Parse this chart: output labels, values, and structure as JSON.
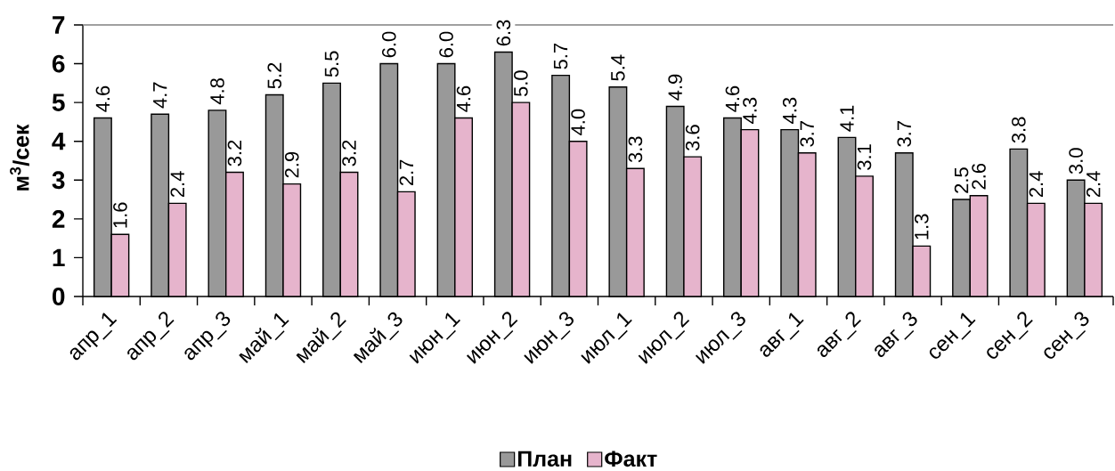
{
  "chart_data": {
    "type": "bar",
    "ylabel": "м$^{3}$/сек",
    "categories": [
      "апр_1",
      "апр_2",
      "апр_3",
      "май_1",
      "май_2",
      "май_3",
      "июн_1",
      "июн_2",
      "июн_3",
      "июл_1",
      "июл_2",
      "июл_3",
      "авг_1",
      "авг_2",
      "авг_3",
      "сен_1",
      "сен_2",
      "сен_3"
    ],
    "series": [
      {
        "name": "План",
        "color": "#999999",
        "values": [
          4.6,
          4.7,
          4.8,
          5.2,
          5.5,
          6.0,
          6.0,
          6.3,
          5.7,
          5.4,
          4.9,
          4.6,
          4.3,
          4.1,
          3.7,
          2.5,
          3.8,
          3.0
        ],
        "value_labels": [
          "4.6",
          "4.7",
          "4.8",
          "5.2",
          "5.5",
          "6.0",
          "6.0",
          "6.3",
          "5.7",
          "5.4",
          "4.9",
          "4.6",
          "4.3",
          "4.1",
          "3.7",
          "2.5",
          "3.8",
          "3.0"
        ]
      },
      {
        "name": "Факт",
        "color": "#e6b4cc",
        "values": [
          1.6,
          2.4,
          3.2,
          2.9,
          3.2,
          2.7,
          4.6,
          5.0,
          4.0,
          3.3,
          3.6,
          4.3,
          3.7,
          3.1,
          1.3,
          2.6,
          2.4,
          2.4
        ],
        "value_labels": [
          "1.6",
          "2.4",
          "3.2",
          "2.9",
          "3.2",
          "2.7",
          "4.6",
          "5.0",
          "4.0",
          "3.3",
          "3.6",
          "4.3",
          "3.7",
          "3.1",
          "1.3",
          "2.6",
          "2.4",
          "2.4"
        ]
      }
    ],
    "ylim": [
      0,
      7
    ],
    "yticks": [
      0,
      1,
      2,
      3,
      4,
      5,
      6,
      7
    ],
    "legend": "bottom"
  }
}
